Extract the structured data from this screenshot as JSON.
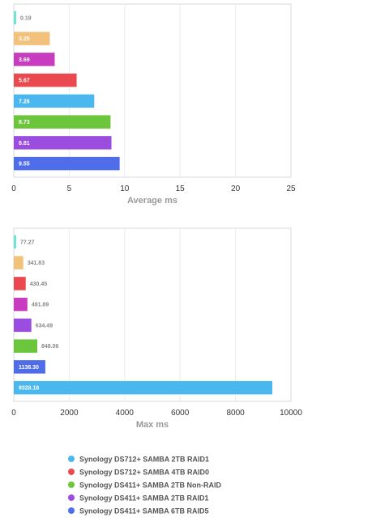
{
  "chart_data": [
    {
      "type": "bar",
      "orientation": "horizontal",
      "xlabel": "Average ms",
      "xlim": [
        0,
        25
      ],
      "xticks": [
        0,
        5,
        10,
        15,
        20,
        25
      ],
      "grid": true,
      "bars": [
        {
          "value": 0.19,
          "label": "0.19",
          "color": "#6ee3d6"
        },
        {
          "value": 3.25,
          "label": "3.25",
          "color": "#f2c27c"
        },
        {
          "value": 3.69,
          "label": "3.69",
          "color": "#c83cbf"
        },
        {
          "value": 5.67,
          "label": "5.67",
          "color": "#ea4a4f"
        },
        {
          "value": 7.26,
          "label": "7.26",
          "color": "#4ab8ef"
        },
        {
          "value": 8.73,
          "label": "8.73",
          "color": "#6cc63c"
        },
        {
          "value": 8.81,
          "label": "8.81",
          "color": "#9b4de0"
        },
        {
          "value": 9.55,
          "label": "9.55",
          "color": "#4f6de8"
        }
      ]
    },
    {
      "type": "bar",
      "orientation": "horizontal",
      "xlabel": "Max ms",
      "xlim": [
        0,
        10000
      ],
      "xticks": [
        0,
        2000,
        4000,
        6000,
        8000,
        10000
      ],
      "grid": true,
      "bars": [
        {
          "value": 77.27,
          "label": "77.27",
          "color": "#6ee3d6"
        },
        {
          "value": 341.83,
          "label": "341.83",
          "color": "#f2c27c"
        },
        {
          "value": 430.45,
          "label": "430.45",
          "color": "#ea4a4f"
        },
        {
          "value": 491.89,
          "label": "491.89",
          "color": "#c83cbf"
        },
        {
          "value": 634.49,
          "label": "634.49",
          "color": "#9b4de0"
        },
        {
          "value": 848.06,
          "label": "848.06",
          "color": "#6cc63c"
        },
        {
          "value": 1138.3,
          "label": "1138.30",
          "color": "#4f6de8"
        },
        {
          "value": 9328.16,
          "label": "9328.16",
          "color": "#4ab8ef"
        }
      ]
    }
  ],
  "legend": [
    {
      "label": "Synology DS712+ SAMBA 2TB RAID1",
      "color": "#4ab8ef"
    },
    {
      "label": "Synology DS712+ SAMBA 4TB RAID0",
      "color": "#ea4a4f"
    },
    {
      "label": "Synology DS411+ SAMBA 2TB Non-RAID",
      "color": "#6cc63c"
    },
    {
      "label": "Synology DS411+ SAMBA 2TB RAID1",
      "color": "#9b4de0"
    },
    {
      "label": "Synology DS411+ SAMBA 6TB RAID5",
      "color": "#4f6de8"
    }
  ]
}
